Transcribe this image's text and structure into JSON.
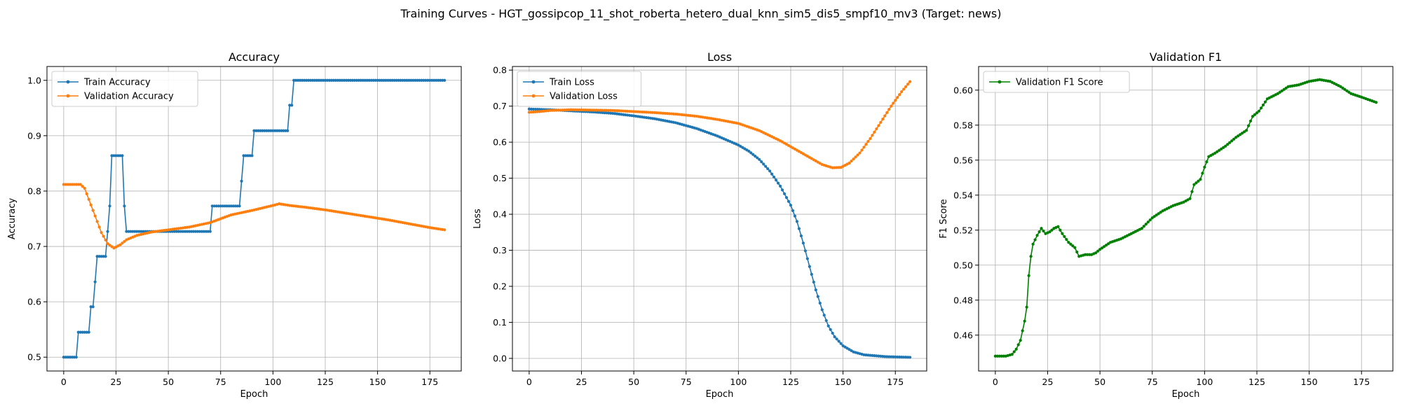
{
  "figure_title": "Training Curves - HGT_gossipcop_11_shot_roberta_hetero_dual_knn_sim5_dis5_smpf10_mv3 (Target: news)",
  "colors": {
    "train": "#1f77b4",
    "validation": "#ff7f0e",
    "f1": "#008000",
    "grid": "#b0b0b0"
  },
  "chart_data": [
    {
      "type": "line",
      "title": "Accuracy",
      "xlabel": "Epoch",
      "ylabel": "Accuracy",
      "xlim": [
        -8,
        190
      ],
      "ylim": [
        0.475,
        1.025
      ],
      "xticks": [
        0,
        25,
        50,
        75,
        100,
        125,
        150,
        175
      ],
      "yticks": [
        0.5,
        0.6,
        0.7,
        0.8,
        0.9,
        1.0
      ],
      "ytick_labels": [
        "0.5",
        "0.6",
        "0.7",
        "0.8",
        "0.9",
        "1.0"
      ],
      "grid": true,
      "legend_position": "upper left",
      "series": [
        {
          "name": "Train Accuracy",
          "color": "#1f77b4",
          "x_end": 182,
          "points": [
            [
              0,
              0.5
            ],
            [
              6,
              0.5
            ],
            [
              7,
              0.545
            ],
            [
              12,
              0.545
            ],
            [
              13,
              0.591
            ],
            [
              14,
              0.591
            ],
            [
              15,
              0.636
            ],
            [
              16,
              0.682
            ],
            [
              20,
              0.682
            ],
            [
              21,
              0.727
            ],
            [
              22,
              0.773
            ],
            [
              23,
              0.864
            ],
            [
              28,
              0.864
            ],
            [
              29,
              0.773
            ],
            [
              30,
              0.727
            ],
            [
              70,
              0.727
            ],
            [
              71,
              0.773
            ],
            [
              84,
              0.773
            ],
            [
              85,
              0.818
            ],
            [
              86,
              0.864
            ],
            [
              90,
              0.864
            ],
            [
              91,
              0.909
            ],
            [
              107,
              0.909
            ],
            [
              108,
              0.955
            ],
            [
              109,
              0.955
            ],
            [
              110,
              1.0
            ],
            [
              182,
              1.0
            ]
          ]
        },
        {
          "name": "Validation Accuracy",
          "color": "#ff7f0e",
          "x_end": 182,
          "points": [
            [
              0,
              0.812
            ],
            [
              8,
              0.812
            ],
            [
              10,
              0.805
            ],
            [
              12,
              0.785
            ],
            [
              15,
              0.755
            ],
            [
              18,
              0.725
            ],
            [
              21,
              0.705
            ],
            [
              24,
              0.697
            ],
            [
              27,
              0.703
            ],
            [
              30,
              0.712
            ],
            [
              35,
              0.72
            ],
            [
              42,
              0.726
            ],
            [
              50,
              0.73
            ],
            [
              60,
              0.735
            ],
            [
              70,
              0.743
            ],
            [
              80,
              0.757
            ],
            [
              90,
              0.765
            ],
            [
              100,
              0.774
            ],
            [
              103,
              0.777
            ],
            [
              108,
              0.774
            ],
            [
              115,
              0.771
            ],
            [
              125,
              0.766
            ],
            [
              135,
              0.76
            ],
            [
              145,
              0.754
            ],
            [
              155,
              0.748
            ],
            [
              165,
              0.741
            ],
            [
              175,
              0.734
            ],
            [
              182,
              0.73
            ]
          ]
        }
      ]
    },
    {
      "type": "line",
      "title": "Loss",
      "xlabel": "Epoch",
      "ylabel": "Loss",
      "xlim": [
        -8,
        190
      ],
      "ylim": [
        -0.035,
        0.81
      ],
      "xticks": [
        0,
        25,
        50,
        75,
        100,
        125,
        150,
        175
      ],
      "yticks": [
        0.0,
        0.1,
        0.2,
        0.3,
        0.4,
        0.5,
        0.6,
        0.7,
        0.8
      ],
      "ytick_labels": [
        "0.0",
        "0.1",
        "0.2",
        "0.3",
        "0.4",
        "0.5",
        "0.6",
        "0.7",
        "0.8"
      ],
      "grid": true,
      "legend_position": "upper left",
      "series": [
        {
          "name": "Train Loss",
          "color": "#1f77b4",
          "x_end": 182,
          "points": [
            [
              0,
              0.692
            ],
            [
              10,
              0.69
            ],
            [
              20,
              0.687
            ],
            [
              30,
              0.684
            ],
            [
              40,
              0.68
            ],
            [
              50,
              0.673
            ],
            [
              60,
              0.665
            ],
            [
              70,
              0.654
            ],
            [
              80,
              0.638
            ],
            [
              90,
              0.617
            ],
            [
              100,
              0.592
            ],
            [
              105,
              0.575
            ],
            [
              110,
              0.552
            ],
            [
              115,
              0.52
            ],
            [
              120,
              0.478
            ],
            [
              125,
              0.425
            ],
            [
              128,
              0.38
            ],
            [
              131,
              0.32
            ],
            [
              134,
              0.255
            ],
            [
              137,
              0.19
            ],
            [
              140,
              0.135
            ],
            [
              143,
              0.09
            ],
            [
              146,
              0.06
            ],
            [
              150,
              0.035
            ],
            [
              155,
              0.018
            ],
            [
              160,
              0.01
            ],
            [
              170,
              0.005
            ],
            [
              182,
              0.003
            ]
          ]
        },
        {
          "name": "Validation Loss",
          "color": "#ff7f0e",
          "x_end": 182,
          "points": [
            [
              0,
              0.683
            ],
            [
              5,
              0.685
            ],
            [
              10,
              0.688
            ],
            [
              20,
              0.69
            ],
            [
              30,
              0.689
            ],
            [
              40,
              0.688
            ],
            [
              50,
              0.685
            ],
            [
              60,
              0.682
            ],
            [
              70,
              0.678
            ],
            [
              80,
              0.672
            ],
            [
              90,
              0.663
            ],
            [
              100,
              0.652
            ],
            [
              110,
              0.632
            ],
            [
              120,
              0.604
            ],
            [
              130,
              0.571
            ],
            [
              140,
              0.538
            ],
            [
              145,
              0.529
            ],
            [
              149,
              0.53
            ],
            [
              153,
              0.542
            ],
            [
              158,
              0.57
            ],
            [
              163,
              0.61
            ],
            [
              168,
              0.655
            ],
            [
              173,
              0.7
            ],
            [
              178,
              0.74
            ],
            [
              182,
              0.768
            ]
          ]
        }
      ]
    },
    {
      "type": "line",
      "title": "Validation F1",
      "xlabel": "Epoch",
      "ylabel": "F1 Score",
      "xlim": [
        -8,
        190
      ],
      "ylim": [
        0.4395,
        0.6135
      ],
      "xticks": [
        0,
        25,
        50,
        75,
        100,
        125,
        150,
        175
      ],
      "yticks": [
        0.46,
        0.48,
        0.5,
        0.52,
        0.54,
        0.56,
        0.58,
        0.6
      ],
      "ytick_labels": [
        "0.46",
        "0.48",
        "0.50",
        "0.52",
        "0.54",
        "0.56",
        "0.58",
        "0.60"
      ],
      "grid": true,
      "legend_position": "upper left",
      "series": [
        {
          "name": "Validation F1 Score",
          "color": "#008000",
          "x_end": 182,
          "points": [
            [
              0,
              0.448
            ],
            [
              5,
              0.448
            ],
            [
              8,
              0.449
            ],
            [
              10,
              0.452
            ],
            [
              12,
              0.457
            ],
            [
              14,
              0.468
            ],
            [
              15,
              0.476
            ],
            [
              16,
              0.494
            ],
            [
              17,
              0.505
            ],
            [
              18,
              0.512
            ],
            [
              20,
              0.517
            ],
            [
              22,
              0.521
            ],
            [
              24,
              0.518
            ],
            [
              26,
              0.519
            ],
            [
              28,
              0.521
            ],
            [
              30,
              0.522
            ],
            [
              32,
              0.518
            ],
            [
              35,
              0.513
            ],
            [
              38,
              0.51
            ],
            [
              40,
              0.505
            ],
            [
              43,
              0.506
            ],
            [
              46,
              0.506
            ],
            [
              48,
              0.507
            ],
            [
              50,
              0.509
            ],
            [
              55,
              0.513
            ],
            [
              60,
              0.515
            ],
            [
              65,
              0.518
            ],
            [
              70,
              0.521
            ],
            [
              75,
              0.527
            ],
            [
              80,
              0.531
            ],
            [
              85,
              0.534
            ],
            [
              90,
              0.536
            ],
            [
              93,
              0.538
            ],
            [
              95,
              0.546
            ],
            [
              98,
              0.549
            ],
            [
              100,
              0.556
            ],
            [
              102,
              0.562
            ],
            [
              105,
              0.564
            ],
            [
              110,
              0.568
            ],
            [
              115,
              0.573
            ],
            [
              120,
              0.577
            ],
            [
              123,
              0.585
            ],
            [
              126,
              0.588
            ],
            [
              130,
              0.595
            ],
            [
              135,
              0.598
            ],
            [
              140,
              0.602
            ],
            [
              145,
              0.603
            ],
            [
              150,
              0.605
            ],
            [
              155,
              0.606
            ],
            [
              160,
              0.605
            ],
            [
              165,
              0.602
            ],
            [
              170,
              0.598
            ],
            [
              175,
              0.596
            ],
            [
              182,
              0.593
            ]
          ]
        }
      ]
    }
  ]
}
